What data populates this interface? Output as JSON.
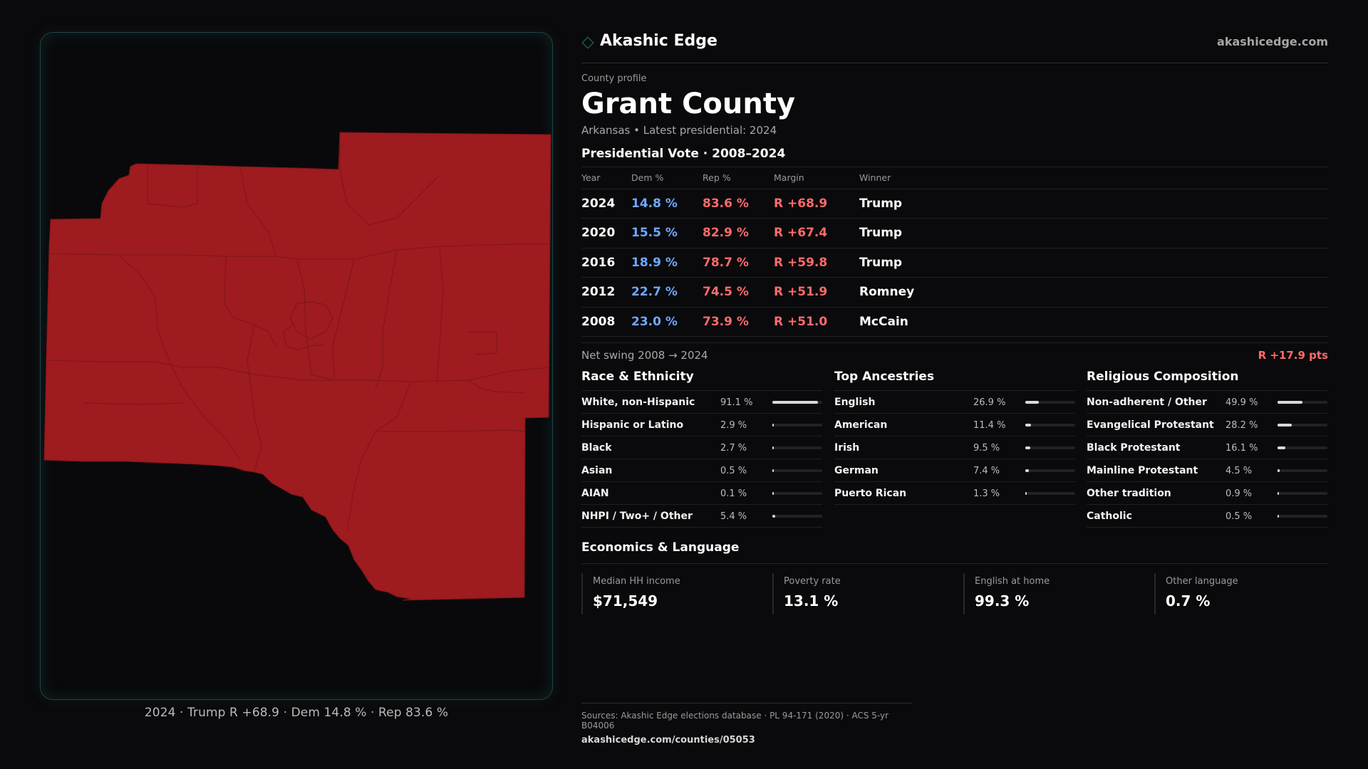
{
  "brand": {
    "name": "Akashic Edge",
    "url": "akashicedge.com",
    "icon": "diamond-icon"
  },
  "profile": {
    "kicker": "County profile",
    "title": "Grant County",
    "subtitle": "Arkansas • Latest presidential: 2024"
  },
  "vote": {
    "title": "Presidential Vote · 2008–2024",
    "headers": [
      "Year",
      "Dem %",
      "Rep %",
      "Margin",
      "Winner"
    ],
    "rows": [
      {
        "year": "2024",
        "dem": "14.8 %",
        "rep": "83.6 %",
        "margin": "R +68.9",
        "winner": "Trump"
      },
      {
        "year": "2020",
        "dem": "15.5 %",
        "rep": "82.9 %",
        "margin": "R +67.4",
        "winner": "Trump"
      },
      {
        "year": "2016",
        "dem": "18.9 %",
        "rep": "78.7 %",
        "margin": "R +59.8",
        "winner": "Trump"
      },
      {
        "year": "2012",
        "dem": "22.7 %",
        "rep": "74.5 %",
        "margin": "R +51.9",
        "winner": "Romney"
      },
      {
        "year": "2008",
        "dem": "23.0 %",
        "rep": "73.9 %",
        "margin": "R +51.0",
        "winner": "McCain"
      }
    ],
    "swing_label": "Net swing 2008 → 2024",
    "swing_value": "R +17.9 pts"
  },
  "race": {
    "title": "Race & Ethnicity",
    "rows": [
      {
        "name": "White, non-Hispanic",
        "value": "91.1 %",
        "pct": 91.1
      },
      {
        "name": "Hispanic or Latino",
        "value": "2.9 %",
        "pct": 2.9
      },
      {
        "name": "Black",
        "value": "2.7 %",
        "pct": 2.7
      },
      {
        "name": "Asian",
        "value": "0.5 %",
        "pct": 0.5
      },
      {
        "name": "AIAN",
        "value": "0.1 %",
        "pct": 0.1
      },
      {
        "name": "NHPI / Two+ / Other",
        "value": "5.4 %",
        "pct": 5.4
      }
    ]
  },
  "ancestry": {
    "title": "Top Ancestries",
    "rows": [
      {
        "name": "English",
        "value": "26.9 %",
        "pct": 26.9
      },
      {
        "name": "American",
        "value": "11.4 %",
        "pct": 11.4
      },
      {
        "name": "Irish",
        "value": "9.5 %",
        "pct": 9.5
      },
      {
        "name": "German",
        "value": "7.4 %",
        "pct": 7.4
      },
      {
        "name": "Puerto Rican",
        "value": "1.3 %",
        "pct": 1.3
      }
    ]
  },
  "religion": {
    "title": "Religious Composition",
    "rows": [
      {
        "name": "Non-adherent / Other",
        "value": "49.9 %",
        "pct": 49.9
      },
      {
        "name": "Evangelical Protestant",
        "value": "28.2 %",
        "pct": 28.2
      },
      {
        "name": "Black Protestant",
        "value": "16.1 %",
        "pct": 16.1
      },
      {
        "name": "Mainline Protestant",
        "value": "4.5 %",
        "pct": 4.5
      },
      {
        "name": "Other tradition",
        "value": "0.9 %",
        "pct": 0.9
      },
      {
        "name": "Catholic",
        "value": "0.5 %",
        "pct": 0.5
      }
    ]
  },
  "economics": {
    "title": "Economics & Language",
    "cards": [
      {
        "label": "Median HH income",
        "value": "$71,549"
      },
      {
        "label": "Poverty rate",
        "value": "13.1 %"
      },
      {
        "label": "English at home",
        "value": "99.3 %"
      },
      {
        "label": "Other language",
        "value": "0.7 %"
      }
    ]
  },
  "map": {
    "caption": "2024 · Trump R +68.9 · Dem 14.8 % · Rep 83.6 %",
    "fill_color": "#9e1b1f",
    "border_color": "#6e1215"
  },
  "sources": {
    "line": "Sources: Akashic Edge elections database · PL 94-171 (2020) · ACS 5-yr B04006",
    "url": "akashicedge.com/counties/05053"
  }
}
